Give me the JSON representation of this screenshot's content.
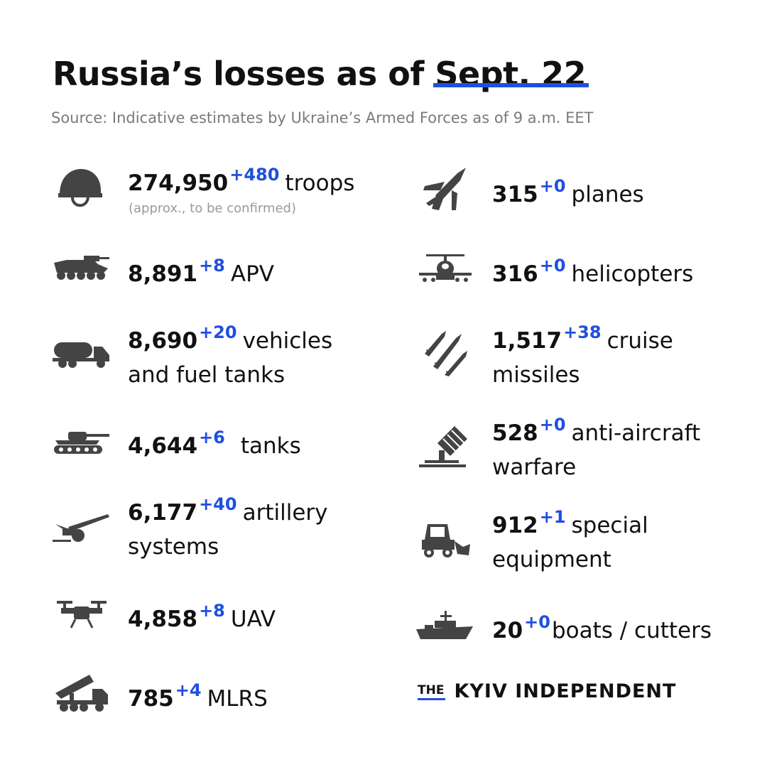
{
  "header": {
    "title_prefix": "Russia’s losses as of",
    "title_date": "Sept. 22",
    "source": "Source: Indicative estimates by Ukraine’s Armed Forces as of 9 a.m. EET"
  },
  "colors": {
    "accent": "#1f4fe0",
    "icon": "#444444",
    "text": "#111111",
    "muted": "#7a7a7a"
  },
  "left": [
    {
      "icon": "helmet-icon",
      "value": "274,950",
      "delta": "+480",
      "label": "troops",
      "note": "(approx., to be confirmed)"
    },
    {
      "icon": "apv-icon",
      "value": "8,891",
      "delta": "+8",
      "label": "APV"
    },
    {
      "icon": "fuel-truck-icon",
      "value": "8,690",
      "delta": "+20",
      "label": "vehicles",
      "label2": "and fuel tanks"
    },
    {
      "icon": "tank-icon",
      "value": "4,644",
      "delta": "+6",
      "label": "tanks"
    },
    {
      "icon": "artillery-icon",
      "value": "6,177",
      "delta": "+40",
      "label": "artillery",
      "label2": "systems"
    },
    {
      "icon": "drone-icon",
      "value": "4,858",
      "delta": "+8",
      "label": "UAV"
    },
    {
      "icon": "mlrs-icon",
      "value": "785",
      "delta": "+4",
      "label": "MLRS"
    }
  ],
  "right": [
    {
      "icon": "plane-icon",
      "value": "315",
      "delta": "+0",
      "label": "planes"
    },
    {
      "icon": "helicopter-icon",
      "value": "316",
      "delta": "+0",
      "label": "helicopters"
    },
    {
      "icon": "missiles-icon",
      "value": "1,517",
      "delta": "+38",
      "label": "cruise",
      "label2": "missiles"
    },
    {
      "icon": "anti-aircraft-icon",
      "value": "528",
      "delta": "+0",
      "label": "anti-aircraft",
      "label2": "warfare"
    },
    {
      "icon": "loader-icon",
      "value": "912",
      "delta": "+1",
      "label": "special",
      "label2": "equipment"
    },
    {
      "icon": "ship-icon",
      "value": "20",
      "delta": "+0",
      "label": "boats / cutters"
    }
  ],
  "logo": {
    "the": "THE",
    "name": "KYIV INDEPENDENT"
  }
}
